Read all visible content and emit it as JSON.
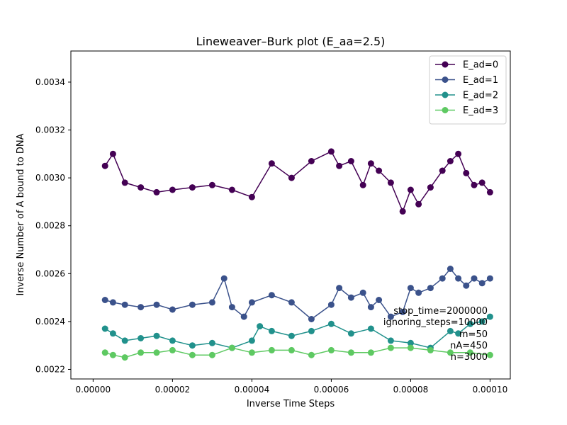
{
  "chart_data": {
    "type": "line",
    "title": "Lineweaver–Burk plot (E_aa=2.5)",
    "xlabel": "Inverse Time Steps",
    "ylabel": "Inverse Number of A bound to DNA",
    "xlim": [
      -5.6e-06,
      0.0001051
    ],
    "ylim": [
      0.00216,
      0.00353
    ],
    "xticks": [
      0,
      2e-05,
      4e-05,
      6e-05,
      8e-05,
      0.0001
    ],
    "xtick_labels": [
      "0.00000",
      "0.00002",
      "0.00004",
      "0.00006",
      "0.00008",
      "0.00010"
    ],
    "yticks": [
      0.0022,
      0.0024,
      0.0026,
      0.0028,
      0.003,
      0.0032,
      0.0034
    ],
    "ytick_labels": [
      "0.0022",
      "0.0024",
      "0.0026",
      "0.0028",
      "0.0030",
      "0.0032",
      "0.0034"
    ],
    "legend_position": "top-right",
    "grid": false,
    "series": [
      {
        "name": "E_ad=0",
        "color": "#440154",
        "x": [
          3e-06,
          5e-06,
          8e-06,
          1.2e-05,
          1.6e-05,
          2e-05,
          2.5e-05,
          3e-05,
          3.5e-05,
          4e-05,
          4.5e-05,
          5e-05,
          5.5e-05,
          6e-05,
          6.2e-05,
          6.5e-05,
          6.8e-05,
          7e-05,
          7.2e-05,
          7.5e-05,
          7.8e-05,
          8e-05,
          8.2e-05,
          8.5e-05,
          8.8e-05,
          9e-05,
          9.2e-05,
          9.4e-05,
          9.6e-05,
          9.8e-05,
          0.0001
        ],
        "y": [
          0.00305,
          0.0031,
          0.00298,
          0.00296,
          0.00294,
          0.00295,
          0.00296,
          0.00297,
          0.00295,
          0.00292,
          0.00306,
          0.003,
          0.00307,
          0.00311,
          0.00305,
          0.00307,
          0.00297,
          0.00306,
          0.00303,
          0.00298,
          0.00286,
          0.00295,
          0.00289,
          0.00296,
          0.00303,
          0.00307,
          0.0031,
          0.00302,
          0.00297,
          0.00298,
          0.00294
        ]
      },
      {
        "name": "E_ad=1",
        "color": "#3b528b",
        "x": [
          3e-06,
          5e-06,
          8e-06,
          1.2e-05,
          1.6e-05,
          2e-05,
          2.5e-05,
          3e-05,
          3.3e-05,
          3.5e-05,
          3.8e-05,
          4e-05,
          4.5e-05,
          5e-05,
          5.5e-05,
          6e-05,
          6.2e-05,
          6.5e-05,
          6.8e-05,
          7e-05,
          7.2e-05,
          7.5e-05,
          7.8e-05,
          8e-05,
          8.2e-05,
          8.5e-05,
          8.8e-05,
          9e-05,
          9.2e-05,
          9.4e-05,
          9.6e-05,
          9.8e-05,
          0.0001
        ],
        "y": [
          0.00249,
          0.00248,
          0.00247,
          0.00246,
          0.00247,
          0.00245,
          0.00247,
          0.00248,
          0.00258,
          0.00246,
          0.00242,
          0.00248,
          0.00251,
          0.00248,
          0.00241,
          0.00247,
          0.00254,
          0.0025,
          0.00252,
          0.00246,
          0.00249,
          0.00242,
          0.00244,
          0.00254,
          0.00252,
          0.00254,
          0.00258,
          0.00262,
          0.00258,
          0.00255,
          0.00258,
          0.00256,
          0.00258
        ]
      },
      {
        "name": "E_ad=2",
        "color": "#21918c",
        "x": [
          3e-06,
          5e-06,
          8e-06,
          1.2e-05,
          1.6e-05,
          2e-05,
          2.5e-05,
          3e-05,
          3.5e-05,
          4e-05,
          4.2e-05,
          4.5e-05,
          5e-05,
          5.5e-05,
          6e-05,
          6.5e-05,
          7e-05,
          7.5e-05,
          8e-05,
          8.5e-05,
          9e-05,
          9.2e-05,
          9.5e-05,
          9.8e-05,
          0.0001
        ],
        "y": [
          0.00237,
          0.00235,
          0.00232,
          0.00233,
          0.00234,
          0.00232,
          0.0023,
          0.00231,
          0.00229,
          0.00232,
          0.00238,
          0.00236,
          0.00234,
          0.00236,
          0.00239,
          0.00235,
          0.00237,
          0.00232,
          0.00231,
          0.00229,
          0.00236,
          0.00235,
          0.00239,
          0.0024,
          0.00242
        ]
      },
      {
        "name": "E_ad=3",
        "color": "#5ec962",
        "x": [
          3e-06,
          5e-06,
          8e-06,
          1.2e-05,
          1.6e-05,
          2e-05,
          2.5e-05,
          3e-05,
          3.5e-05,
          4e-05,
          4.5e-05,
          5e-05,
          5.5e-05,
          6e-05,
          6.5e-05,
          7e-05,
          7.5e-05,
          8e-05,
          8.5e-05,
          9e-05,
          9.5e-05,
          0.0001
        ],
        "y": [
          0.00227,
          0.00226,
          0.00225,
          0.00227,
          0.00227,
          0.00228,
          0.00226,
          0.00226,
          0.00229,
          0.00227,
          0.00228,
          0.00228,
          0.00226,
          0.00228,
          0.00227,
          0.00227,
          0.00229,
          0.00229,
          0.00228,
          0.00227,
          0.00227,
          0.00226
        ]
      }
    ],
    "annotations": [
      "stop_time=2000000",
      "ignoring_steps=10000",
      "m=50",
      "nA=450",
      "n=3000"
    ]
  }
}
